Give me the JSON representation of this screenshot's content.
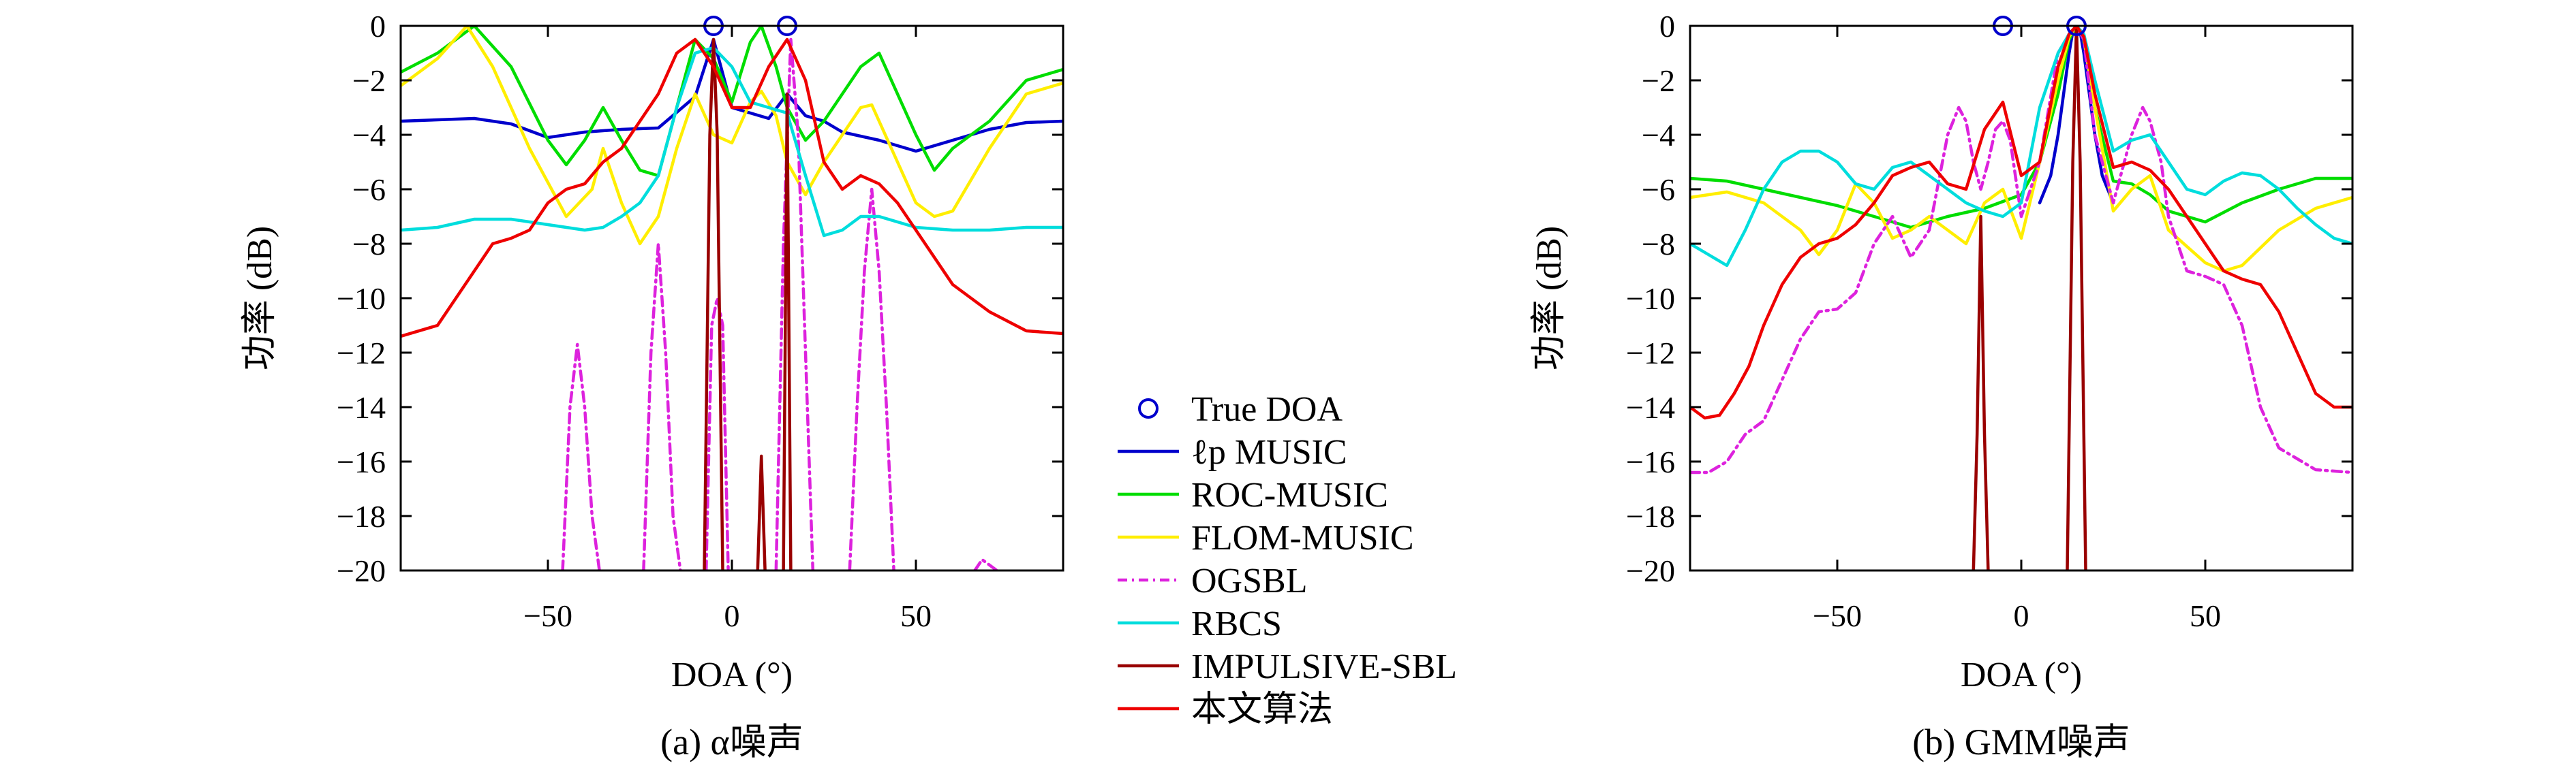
{
  "chart_data": [
    {
      "type": "line",
      "caption": "(a) α噪声",
      "xlabel": "DOA (°)",
      "ylabel": "功率 (dB)",
      "xlim": [
        -90,
        90
      ],
      "ylim": [
        -20,
        0
      ],
      "xticks": [
        "−50",
        "0",
        "50"
      ],
      "xtick_values": [
        -50,
        0,
        50
      ],
      "yticks": [
        "0",
        "−2",
        "−4",
        "−6",
        "−8",
        "−10",
        "−12",
        "−14",
        "−16",
        "−18",
        "−20"
      ],
      "ytick_values": [
        0,
        -2,
        -4,
        -6,
        -8,
        -10,
        -12,
        -14,
        -16,
        -18,
        -20
      ],
      "true_doa": [
        -5,
        15
      ],
      "series": [
        {
          "name": "ℓp MUSIC",
          "color": "#0000cc",
          "dash": "",
          "x": [
            -90,
            -80,
            -70,
            -60,
            -50,
            -40,
            -30,
            -20,
            -10,
            -5,
            0,
            5,
            10,
            15,
            20,
            25,
            30,
            40,
            50,
            60,
            70,
            80,
            90
          ],
          "y": [
            -3.5,
            -3.45,
            -3.4,
            -3.6,
            -4.1,
            -3.9,
            -3.8,
            -3.75,
            -2.6,
            -0.5,
            -3.0,
            -3.2,
            -3.4,
            -2.5,
            -3.3,
            -3.5,
            -3.9,
            -4.2,
            -4.6,
            -4.2,
            -3.8,
            -3.55,
            -3.5
          ]
        },
        {
          "name": "ROC-MUSIC",
          "color": "#00dd00",
          "dash": "",
          "x": [
            -90,
            -80,
            -70,
            -60,
            -50,
            -45,
            -40,
            -35,
            -30,
            -25,
            -20,
            -15,
            -10,
            -5,
            0,
            5,
            8,
            12,
            15,
            20,
            25,
            30,
            35,
            40,
            50,
            55,
            60,
            70,
            80,
            90
          ],
          "y": [
            -1.7,
            -1.0,
            0,
            -1.5,
            -4.2,
            -5.1,
            -4.2,
            -3.0,
            -4.2,
            -5.3,
            -5.5,
            -3.0,
            -0.5,
            -1.2,
            -2.8,
            -0.6,
            0,
            -1.5,
            -3.0,
            -4.2,
            -3.5,
            -2.5,
            -1.5,
            -1.0,
            -4.0,
            -5.3,
            -4.5,
            -3.5,
            -2.0,
            -1.6
          ]
        },
        {
          "name": "FLOM-MUSIC",
          "color": "#ffee00",
          "dash": "",
          "x": [
            -90,
            -80,
            -72,
            -65,
            -55,
            -45,
            -38,
            -35,
            -30,
            -25,
            -20,
            -15,
            -10,
            -5,
            0,
            5,
            8,
            12,
            15,
            20,
            25,
            30,
            35,
            38,
            45,
            50,
            55,
            60,
            70,
            80,
            90
          ],
          "y": [
            -2.2,
            -1.2,
            0,
            -1.5,
            -4.5,
            -7.0,
            -6.0,
            -4.5,
            -6.5,
            -8.0,
            -7.0,
            -4.5,
            -2.5,
            -4.0,
            -4.3,
            -2.8,
            -2.4,
            -3.3,
            -5.0,
            -6.2,
            -5.0,
            -4.0,
            -3.0,
            -2.9,
            -5.0,
            -6.5,
            -7.0,
            -6.8,
            -4.5,
            -2.5,
            -2.1
          ]
        },
        {
          "name": "OGSBL",
          "color": "#dd22dd",
          "dash": "14,7,3,7",
          "x": [
            -46,
            -44,
            -42,
            -40,
            -38,
            -36,
            null,
            -24,
            -22,
            -20,
            -18,
            -16,
            -14,
            null,
            -7,
            -5.5,
            -4,
            -2.5,
            -1,
            null,
            12,
            14,
            16,
            18,
            20,
            22,
            null,
            32,
            34,
            36,
            38,
            40,
            42,
            44,
            null,
            66,
            68,
            70,
            72
          ],
          "y": [
            -20,
            -14,
            -11.7,
            -14,
            -18,
            -20,
            null,
            -20,
            -12,
            -8,
            -12,
            -18,
            -20,
            null,
            -20,
            -11,
            -10,
            -11,
            -20,
            null,
            -20,
            -8,
            -0.5,
            -4,
            -12,
            -20,
            null,
            -20,
            -14,
            -9,
            -6,
            -9,
            -14,
            -20,
            null,
            -20,
            -19.6,
            -19.8,
            -20
          ]
        },
        {
          "name": "RBCS",
          "color": "#00dddd",
          "dash": "",
          "x": [
            -90,
            -80,
            -70,
            -60,
            -50,
            -40,
            -35,
            -30,
            -25,
            -20,
            -15,
            -10,
            -5,
            0,
            5,
            10,
            15,
            20,
            25,
            30,
            35,
            40,
            50,
            60,
            70,
            80,
            90
          ],
          "y": [
            -7.5,
            -7.4,
            -7.1,
            -7.1,
            -7.3,
            -7.5,
            -7.4,
            -7.0,
            -6.5,
            -5.5,
            -3.0,
            -1.0,
            -0.8,
            -1.5,
            -2.8,
            -3.0,
            -3.2,
            -5.5,
            -7.7,
            -7.5,
            -7.0,
            -7.0,
            -7.4,
            -7.5,
            -7.5,
            -7.4,
            -7.4
          ]
        },
        {
          "name": "IMPULSIVE-SBL",
          "color": "#990000",
          "dash": "",
          "x": [
            -7.5,
            -6,
            -5,
            -4,
            -2.5,
            null,
            7,
            8,
            9,
            null,
            14,
            15,
            16
          ],
          "y": [
            -20,
            -4,
            -0.5,
            -4,
            -20,
            null,
            -20,
            -15.8,
            -20,
            null,
            -20,
            -2.5,
            -20
          ]
        },
        {
          "name": "本文算法",
          "color": "#ee0000",
          "dash": "",
          "x": [
            -90,
            -80,
            -70,
            -65,
            -60,
            -55,
            -50,
            -45,
            -40,
            -35,
            -30,
            -25,
            -20,
            -15,
            -10,
            -5,
            0,
            5,
            10,
            15,
            20,
            25,
            30,
            35,
            40,
            45,
            50,
            55,
            60,
            70,
            80,
            90
          ],
          "y": [
            -11.4,
            -11.0,
            -9.0,
            -8.0,
            -7.8,
            -7.5,
            -6.5,
            -6.0,
            -5.8,
            -5.0,
            -4.5,
            -3.5,
            -2.5,
            -1.0,
            -0.5,
            -1.5,
            -3.0,
            -3.0,
            -1.5,
            -0.5,
            -2.0,
            -5.0,
            -6.0,
            -5.5,
            -5.8,
            -6.5,
            -7.5,
            -8.5,
            -9.5,
            -10.5,
            -11.2,
            -11.3
          ]
        }
      ]
    },
    {
      "type": "line",
      "caption": "(b) GMM噪声",
      "xlabel": "DOA (°)",
      "ylabel": "功率 (dB)",
      "xlim": [
        -90,
        90
      ],
      "ylim": [
        -20,
        0
      ],
      "xticks": [
        "−50",
        "0",
        "50"
      ],
      "xtick_values": [
        -50,
        0,
        50
      ],
      "yticks": [
        "0",
        "−2",
        "−4",
        "−6",
        "−8",
        "−10",
        "−12",
        "−14",
        "−16",
        "−18",
        "−20"
      ],
      "ytick_values": [
        0,
        -2,
        -4,
        -6,
        -8,
        -10,
        -12,
        -14,
        -16,
        -18,
        -20
      ],
      "true_doa": [
        -5,
        15
      ],
      "series": [
        {
          "name": "ℓp MUSIC",
          "color": "#0000cc",
          "dash": "",
          "x": [
            5,
            8,
            10,
            12,
            13,
            14,
            15,
            16,
            17,
            18,
            20,
            22,
            25
          ],
          "y": [
            -6.5,
            -5.5,
            -4.0,
            -2.0,
            -1.0,
            -0.2,
            0,
            -0.2,
            -1.0,
            -2.0,
            -4.0,
            -5.5,
            -6.5
          ]
        },
        {
          "name": "ROC-MUSIC",
          "color": "#00dd00",
          "dash": "",
          "x": [
            -90,
            -80,
            -70,
            -60,
            -50,
            -40,
            -30,
            -20,
            -10,
            0,
            5,
            10,
            13,
            15,
            17,
            20,
            25,
            30,
            35,
            40,
            50,
            60,
            70,
            80,
            90
          ],
          "y": [
            -5.6,
            -5.7,
            -6.0,
            -6.3,
            -6.6,
            -7.0,
            -7.4,
            -7.0,
            -6.7,
            -6.2,
            -5.0,
            -2.5,
            -0.5,
            0,
            -0.5,
            -3.0,
            -5.7,
            -5.8,
            -6.2,
            -6.8,
            -7.2,
            -6.5,
            -6.0,
            -5.6,
            -5.6
          ]
        },
        {
          "name": "FLOM-MUSIC",
          "color": "#ffee00",
          "dash": "",
          "x": [
            -90,
            -80,
            -70,
            -60,
            -55,
            -50,
            -45,
            -40,
            -35,
            -30,
            -25,
            -20,
            -15,
            -10,
            -5,
            0,
            5,
            10,
            13,
            15,
            17,
            20,
            25,
            30,
            35,
            40,
            50,
            55,
            60,
            70,
            80,
            90
          ],
          "y": [
            -6.3,
            -6.1,
            -6.5,
            -7.5,
            -8.4,
            -7.5,
            -5.8,
            -6.5,
            -7.8,
            -7.5,
            -7.0,
            -7.5,
            -8.0,
            -6.5,
            -6.0,
            -7.8,
            -5.0,
            -2.0,
            -0.4,
            0,
            -0.5,
            -3.0,
            -6.8,
            -6.0,
            -5.5,
            -7.5,
            -8.7,
            -9.0,
            -8.8,
            -7.5,
            -6.7,
            -6.3
          ]
        },
        {
          "name": "OGSBL",
          "color": "#dd22dd",
          "dash": "14,7,3,7",
          "x": [
            -90,
            -85,
            -80,
            -75,
            -70,
            -65,
            -60,
            -55,
            -50,
            -45,
            -40,
            -35,
            -30,
            -25,
            -20,
            -17,
            -15,
            -13,
            -11,
            -9,
            -7,
            -5,
            -3,
            0,
            5,
            10,
            13,
            15,
            17,
            20,
            25,
            30,
            33,
            35,
            38,
            40,
            45,
            50,
            55,
            60,
            65,
            70,
            80,
            90
          ],
          "y": [
            -16.4,
            -16.4,
            -16.0,
            -15.0,
            -14.5,
            -13.0,
            -11.5,
            -10.5,
            -10.4,
            -9.8,
            -8.0,
            -7.0,
            -8.5,
            -7.5,
            -4.0,
            -3.0,
            -3.5,
            -5.0,
            -6.0,
            -5.0,
            -3.8,
            -3.5,
            -4.2,
            -7.0,
            -5.0,
            -1.0,
            -0.3,
            0,
            -0.5,
            -4.0,
            -6.5,
            -4.0,
            -3.0,
            -3.5,
            -5.0,
            -7.0,
            -9.0,
            -9.2,
            -9.5,
            -11.0,
            -14.0,
            -15.5,
            -16.3,
            -16.4
          ]
        },
        {
          "name": "RBCS",
          "color": "#00dddd",
          "dash": "",
          "x": [
            -90,
            -85,
            -80,
            -75,
            -70,
            -65,
            -60,
            -55,
            -50,
            -45,
            -40,
            -35,
            -30,
            -25,
            -20,
            -15,
            -10,
            -5,
            0,
            5,
            10,
            13,
            15,
            17,
            20,
            25,
            30,
            35,
            40,
            45,
            50,
            55,
            60,
            65,
            70,
            75,
            80,
            85,
            90
          ],
          "y": [
            -8.0,
            -8.4,
            -8.8,
            -7.5,
            -6.0,
            -5.0,
            -4.6,
            -4.6,
            -5.0,
            -5.8,
            -6.0,
            -5.2,
            -5.0,
            -5.5,
            -6.0,
            -6.5,
            -6.8,
            -7.0,
            -6.5,
            -3.0,
            -1.0,
            -0.3,
            0,
            -0.3,
            -2.0,
            -4.6,
            -4.2,
            -4.0,
            -5.0,
            -6.0,
            -6.2,
            -5.7,
            -5.4,
            -5.5,
            -6.0,
            -6.7,
            -7.3,
            -7.8,
            -8.0
          ]
        },
        {
          "name": "IMPULSIVE-SBL",
          "color": "#990000",
          "dash": "",
          "x": [
            -13,
            -12,
            -11,
            -10,
            -9,
            null,
            12.5,
            14,
            15,
            16,
            17.5
          ],
          "y": [
            -20,
            -15,
            -7.0,
            -15,
            -20,
            null,
            -20,
            -5,
            0,
            -5,
            -20
          ]
        },
        {
          "name": "本文算法",
          "color": "#ee0000",
          "dash": "",
          "x": [
            -90,
            -86,
            -82,
            -78,
            -74,
            -70,
            -65,
            -60,
            -55,
            -50,
            -45,
            -40,
            -35,
            -30,
            -25,
            -20,
            -15,
            -10,
            -5,
            0,
            5,
            10,
            13,
            15,
            17,
            20,
            25,
            30,
            35,
            40,
            45,
            50,
            55,
            60,
            65,
            70,
            75,
            80,
            85,
            90
          ],
          "y": [
            -14.0,
            -14.4,
            -14.3,
            -13.5,
            -12.5,
            -11.0,
            -9.5,
            -8.5,
            -8.0,
            -7.8,
            -7.3,
            -6.5,
            -5.5,
            -5.2,
            -5.0,
            -5.8,
            -6.0,
            -3.8,
            -2.8,
            -5.5,
            -5.0,
            -1.5,
            -0.3,
            0,
            -0.4,
            -2.5,
            -5.2,
            -5.0,
            -5.3,
            -6.0,
            -7.0,
            -8.0,
            -9.0,
            -9.3,
            -9.5,
            -10.5,
            -12.0,
            -13.5,
            -14.0,
            -14.0
          ]
        }
      ]
    }
  ],
  "legend": {
    "marker_label": "True DOA",
    "marker_color": "#0000cc",
    "items": [
      {
        "label": "ℓp MUSIC",
        "color": "#0000cc",
        "dash": ""
      },
      {
        "label": "ROC-MUSIC",
        "color": "#00dd00",
        "dash": ""
      },
      {
        "label": "FLOM-MUSIC",
        "color": "#ffee00",
        "dash": ""
      },
      {
        "label": "OGSBL",
        "color": "#dd22dd",
        "dash": "14,7,3,7"
      },
      {
        "label": "RBCS",
        "color": "#00dddd",
        "dash": ""
      },
      {
        "label": "IMPULSIVE-SBL",
        "color": "#990000",
        "dash": ""
      },
      {
        "label": "本文算法",
        "color": "#ee0000",
        "dash": ""
      }
    ]
  }
}
